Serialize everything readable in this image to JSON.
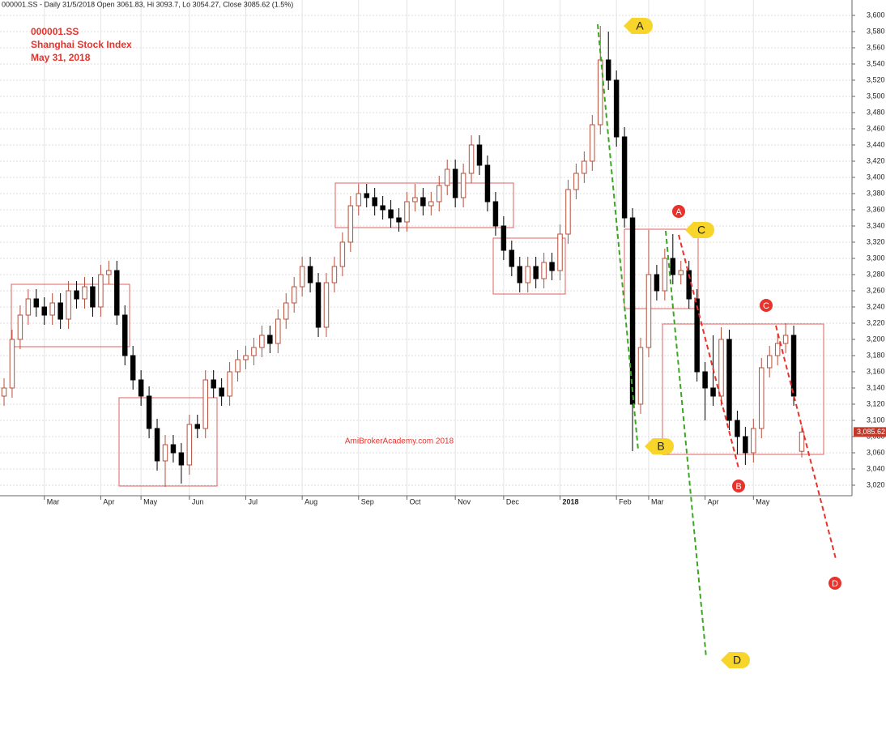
{
  "chart_data": {
    "type": "candlestick",
    "header": "000001.SS - Daily 31/5/2018 Open 3061.83, Hi 3093.7, Lo 3054.27, Close 3085.62 (1.5%)",
    "title": "000001.SS",
    "subtitle": "Shanghai Stock Index",
    "date": "May 31, 2018",
    "watermark": "AmiBrokerAcademy.com  2018",
    "categories": [
      null,
      null,
      null,
      null,
      null,
      "Mar",
      null,
      null,
      null,
      null,
      null,
      null,
      "Apr",
      null,
      null,
      null,
      null,
      "May",
      null,
      null,
      null,
      null,
      null,
      "Jun",
      null,
      null,
      null,
      null,
      null,
      null,
      "Jul",
      null,
      null,
      null,
      null,
      null,
      null,
      "Aug",
      null,
      null,
      null,
      null,
      null,
      null,
      "Sep",
      null,
      null,
      null,
      null,
      null,
      "Oct",
      null,
      null,
      null,
      null,
      null,
      "Nov",
      null,
      null,
      null,
      null,
      null,
      "Dec",
      null,
      null,
      null,
      null,
      null,
      null,
      "2018",
      null,
      null,
      null,
      null,
      null,
      null,
      "Feb",
      null,
      null,
      null,
      "Mar",
      null,
      null,
      null,
      null,
      null,
      null,
      "Apr",
      null,
      null,
      null,
      null,
      null,
      "May",
      null,
      null,
      null,
      null,
      null,
      null
    ],
    "open": [
      3130,
      3140,
      3200,
      3230,
      3250,
      3240,
      3230,
      3245,
      3225,
      3260,
      3250,
      3265,
      3240,
      3280,
      3285,
      3230,
      3180,
      3150,
      3130,
      3090,
      3050,
      3070,
      3060,
      3045,
      3095,
      3090,
      3150,
      3140,
      3130,
      3160,
      3175,
      3180,
      3190,
      3205,
      3195,
      3225,
      3245,
      3265,
      3290,
      3270,
      3215,
      3270,
      3290,
      3320,
      3365,
      3380,
      3375,
      3365,
      3360,
      3350,
      3345,
      3370,
      3375,
      3365,
      3370,
      3390,
      3410,
      3375,
      3405,
      3440,
      3415,
      3370,
      3340,
      3310,
      3290,
      3270,
      3290,
      3275,
      3295,
      3285,
      3330,
      3385,
      3405,
      3420,
      3465,
      3545,
      3520,
      3450,
      3350,
      3120,
      3190,
      3280,
      3260,
      3300,
      3280,
      3285,
      3250,
      3160,
      3140,
      3130,
      3200,
      3100,
      3080,
      3060,
      3090,
      3165,
      3180,
      3195,
      3205,
      3061.83
    ],
    "high": [
      3152,
      3212,
      3242,
      3262,
      3262,
      3252,
      3257,
      3257,
      3272,
      3272,
      3277,
      3277,
      3292,
      3297,
      3297,
      3242,
      3192,
      3162,
      3142,
      3102,
      3082,
      3082,
      3072,
      3107,
      3107,
      3162,
      3162,
      3152,
      3172,
      3187,
      3192,
      3202,
      3217,
      3217,
      3237,
      3257,
      3277,
      3302,
      3302,
      3282,
      3282,
      3302,
      3332,
      3377,
      3392,
      3392,
      3387,
      3377,
      3372,
      3362,
      3382,
      3392,
      3387,
      3382,
      3402,
      3422,
      3422,
      3417,
      3452,
      3452,
      3427,
      3382,
      3352,
      3322,
      3302,
      3302,
      3302,
      3307,
      3307,
      3342,
      3397,
      3417,
      3432,
      3477,
      3587,
      3580,
      3532,
      3462,
      3362,
      3202,
      3335,
      3292,
      3312,
      3330,
      3297,
      3297,
      3262,
      3172,
      3205,
      3215,
      3212,
      3112,
      3092,
      3102,
      3177,
      3192,
      3207,
      3220,
      3217,
      3093.7
    ],
    "low": [
      3118,
      3128,
      3188,
      3218,
      3228,
      3218,
      3218,
      3213,
      3213,
      3238,
      3238,
      3228,
      3228,
      3268,
      3218,
      3168,
      3138,
      3118,
      3078,
      3038,
      3018,
      3048,
      3022,
      3033,
      3078,
      3078,
      3128,
      3118,
      3118,
      3148,
      3163,
      3168,
      3178,
      3183,
      3183,
      3213,
      3233,
      3253,
      3258,
      3203,
      3203,
      3258,
      3278,
      3308,
      3353,
      3363,
      3353,
      3348,
      3338,
      3333,
      3333,
      3358,
      3353,
      3353,
      3358,
      3378,
      3363,
      3363,
      3393,
      3403,
      3358,
      3328,
      3298,
      3278,
      3258,
      3258,
      3263,
      3263,
      3273,
      3273,
      3318,
      3373,
      3393,
      3408,
      3453,
      3508,
      3438,
      3338,
      3062,
      3108,
      3178,
      3248,
      3248,
      3268,
      3268,
      3238,
      3148,
      3100,
      3118,
      3118,
      3088,
      3058,
      3045,
      3048,
      3078,
      3153,
      3168,
      3183,
      3118,
      3054.27
    ],
    "close": [
      3140,
      3200,
      3230,
      3250,
      3240,
      3230,
      3245,
      3225,
      3260,
      3250,
      3265,
      3240,
      3280,
      3285,
      3230,
      3180,
      3150,
      3130,
      3090,
      3050,
      3070,
      3060,
      3045,
      3095,
      3090,
      3150,
      3140,
      3130,
      3160,
      3175,
      3180,
      3190,
      3205,
      3195,
      3225,
      3245,
      3265,
      3290,
      3270,
      3215,
      3270,
      3290,
      3320,
      3365,
      3380,
      3375,
      3365,
      3360,
      3350,
      3345,
      3370,
      3375,
      3365,
      3370,
      3390,
      3410,
      3375,
      3405,
      3440,
      3415,
      3370,
      3340,
      3310,
      3290,
      3270,
      3290,
      3275,
      3295,
      3285,
      3330,
      3385,
      3405,
      3420,
      3465,
      3545,
      3520,
      3450,
      3350,
      3120,
      3190,
      3280,
      3260,
      3300,
      3280,
      3285,
      3250,
      3160,
      3140,
      3130,
      3200,
      3100,
      3080,
      3060,
      3090,
      3165,
      3180,
      3195,
      3205,
      3130,
      3085.62
    ],
    "up_color": "#b5503c",
    "down_color": "#000000",
    "ylim": [
      3007,
      3619
    ],
    "yticks": [
      {
        "value": 3020,
        "label": "3,020"
      },
      {
        "value": 3040,
        "label": "3,040"
      },
      {
        "value": 3060,
        "label": "3,060"
      },
      {
        "value": 3080,
        "label": "3,080"
      },
      {
        "value": 3100,
        "label": "3,100"
      },
      {
        "value": 3120,
        "label": "3,120"
      },
      {
        "value": 3140,
        "label": "3,140"
      },
      {
        "value": 3160,
        "label": "3,160"
      },
      {
        "value": 3180,
        "label": "3,180"
      },
      {
        "value": 3200,
        "label": "3,200"
      },
      {
        "value": 3220,
        "label": "3,220"
      },
      {
        "value": 3240,
        "label": "3,240"
      },
      {
        "value": 3260,
        "label": "3,260"
      },
      {
        "value": 3280,
        "label": "3,280"
      },
      {
        "value": 3300,
        "label": "3,300"
      },
      {
        "value": 3320,
        "label": "3,320"
      },
      {
        "value": 3340,
        "label": "3,340"
      },
      {
        "value": 3360,
        "label": "3,360"
      },
      {
        "value": 3380,
        "label": "3,380"
      },
      {
        "value": 3400,
        "label": "3,400"
      },
      {
        "value": 3420,
        "label": "3,420"
      },
      {
        "value": 3440,
        "label": "3,440"
      },
      {
        "value": 3460,
        "label": "3,460"
      },
      {
        "value": 3480,
        "label": "3,480"
      },
      {
        "value": 3500,
        "label": "3,500"
      },
      {
        "value": 3520,
        "label": "3,520"
      },
      {
        "value": 3540,
        "label": "3,540"
      },
      {
        "value": 3560,
        "label": "3,560"
      },
      {
        "value": 3580,
        "label": "3,580"
      },
      {
        "value": 3600,
        "label": "3,600"
      }
    ],
    "grid": true,
    "last_price": {
      "value": 3085.62,
      "label": "3,085.62"
    },
    "callouts": [
      "A",
      "B",
      "C",
      "D"
    ],
    "markers": [
      "A",
      "B",
      "C",
      "D"
    ]
  }
}
